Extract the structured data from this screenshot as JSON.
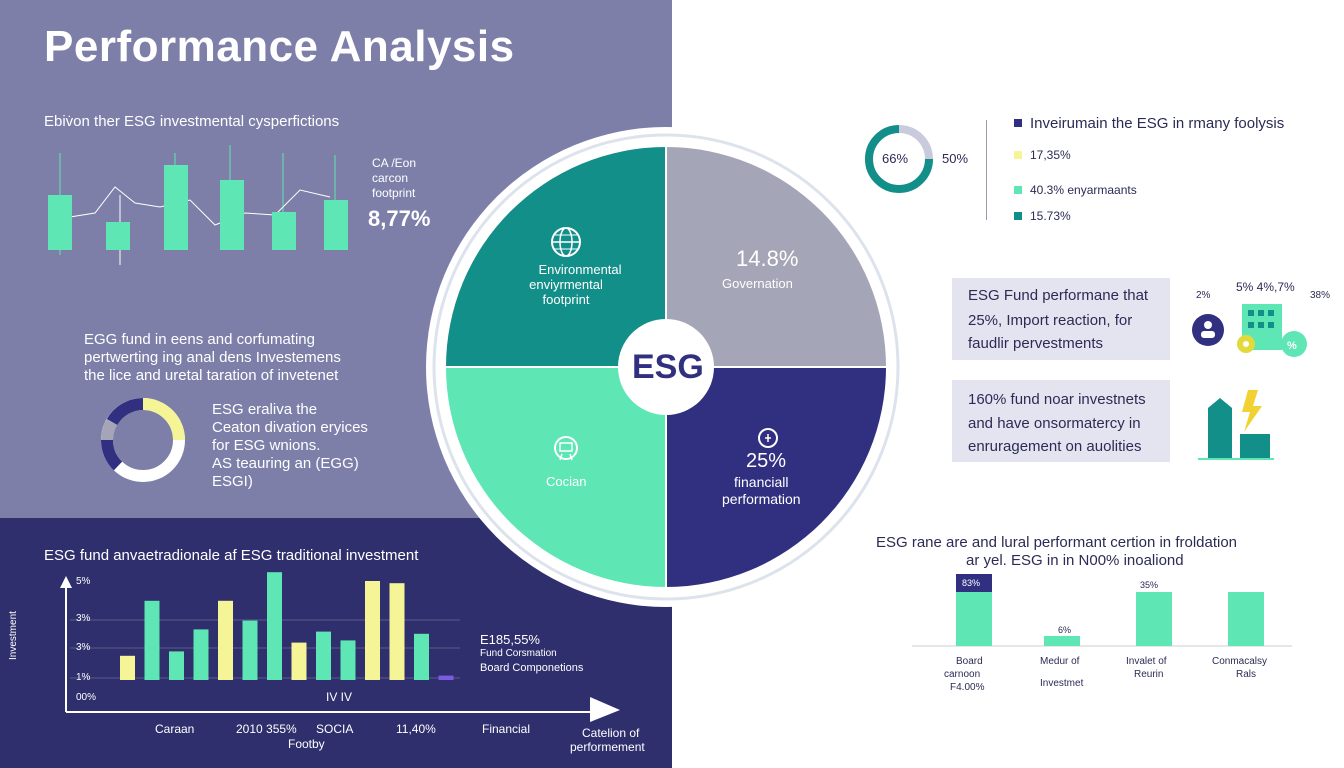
{
  "colors": {
    "panel_top": "#7d7fa9",
    "panel_bottom": "#2f2f6d",
    "green": "#5ee6b4",
    "teal": "#138f8a",
    "navy": "#302f80",
    "gray": "#a5a5b8",
    "yellow": "#f5f597",
    "purple": "#7b5ce0"
  },
  "header": {
    "title": "Performance Analysis"
  },
  "top_left": {
    "heading": "Ebiv̇on ther ESG investmental cysperfictions",
    "side_label_1": "CA /Eon",
    "side_label_2": "carcon",
    "side_label_3": "footprint",
    "side_value": "8,77%"
  },
  "mid_left": {
    "heading_1": "EGG fund in eens and corfumating",
    "heading_2": "pertwerting ing anal dens Investemens",
    "heading_3": "the lice and uretal taration of invetenet",
    "donut_text_1": "ESG eraliva the",
    "donut_text_2": "Ceaton divation eryices",
    "donut_text_3": "for ESG wnions.",
    "donut_text_4": "AS teauring an (EGG)",
    "donut_text_5": "ESGI)"
  },
  "bottom_left": {
    "heading": "ESG fund anvaetradionale af ESG traditional investment",
    "y_axis_label": "Investment",
    "y_ticks": [
      "5%",
      "3%",
      "3%",
      "1%",
      "00%"
    ],
    "x_labels": [
      "Caraan",
      "2010 355%",
      "SOCIA",
      "11,40%",
      "Financial"
    ],
    "x_sublabel": "Footby",
    "mid_label": "IV IV",
    "x_axis_title_1": "Catelion of",
    "x_axis_title_2": "performement",
    "legend_value": "E185,55%",
    "legend_1": "Fund Corsmation",
    "legend_2": "Board Componetions"
  },
  "center": {
    "label": "ESG",
    "q_tl_1": "Environmental",
    "q_tl_2": "enviyrmental",
    "q_tl_3": "footprint",
    "q_tr_value": "14.8%",
    "q_tr_label": "Governation",
    "q_bl_label": "Cocian",
    "q_br_value": "25%",
    "q_br_label_1": "financiall",
    "q_br_label_2": "performation"
  },
  "top_right": {
    "donut_value": "66%",
    "side_value": "50%",
    "legend": [
      "Inveirumain the ESG in rmany foolysis",
      "17,35%",
      "40.3% enyarmaants",
      "15.73%"
    ]
  },
  "right_boxes": {
    "box1": [
      "ESG Fund performane that",
      "25%, Import reaction, for",
      "faudlir pervestments"
    ],
    "box2": [
      "160% fund noar investnets",
      "and have onsormatercy in",
      "enruragement on auolities"
    ],
    "icon_top_value": "5% 4%,7%",
    "icon_left_value": "2%",
    "icon_right_value": "38%"
  },
  "bottom_right": {
    "heading_1": "ESG rane are and lural performant certion in froldation",
    "heading_2": "ar yel. ESG in in N00% inoaliond",
    "bar_labels": [
      "83%",
      "6%",
      "35%"
    ],
    "categories": [
      "Board",
      "Medur of",
      "Invalet of",
      "Conmacalsy"
    ],
    "categories_2": [
      "carnoon",
      "Investmet",
      "Reurin",
      "Rals"
    ],
    "categories_3": [
      "F4.00%"
    ]
  },
  "chart_data": [
    {
      "type": "bar",
      "title": "Ebiv̇on ther ESG investmental cysperfictions",
      "series": [
        {
          "values": [
            55,
            28,
            85,
            70,
            38,
            50
          ]
        }
      ]
    },
    {
      "type": "pie",
      "title": "ESG",
      "categories": [
        "Environmental enviyrmental footprint",
        "Governation",
        "Cocian",
        "financiall performation"
      ],
      "values": [
        25,
        25,
        25,
        25
      ]
    },
    {
      "type": "bar",
      "title": "ESG fund anvaetradionale af ESG traditional investment",
      "y_ticks": [
        "5%",
        "3%",
        "3%",
        "1%",
        "00%"
      ],
      "values": [
        1.1,
        3.6,
        1.3,
        2.3,
        3.6,
        2.7,
        4.9,
        1.7,
        2.2,
        1.8,
        4.5,
        4.4,
        2.1,
        0.2
      ]
    },
    {
      "type": "bar",
      "title": "ESG rane are and lural performant certion in froldation",
      "categories": [
        "Board carnoon",
        "Medur of Investmet",
        "Invalet of Reurin",
        "Conmacalsy Rals"
      ],
      "values": [
        83,
        6,
        35,
        35
      ]
    }
  ]
}
